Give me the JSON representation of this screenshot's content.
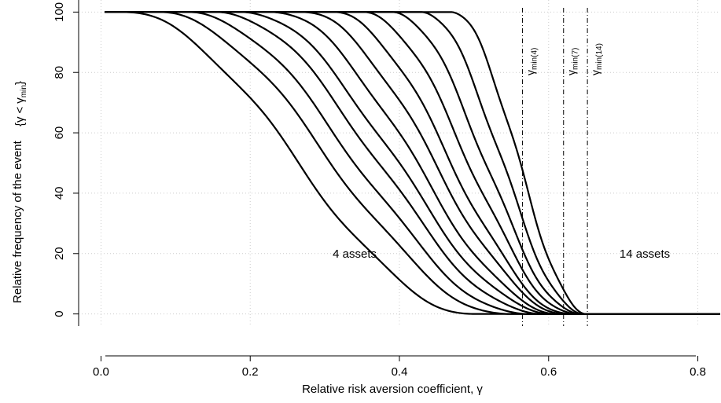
{
  "chart_data": {
    "type": "line",
    "xlabel": "Relative risk aversion coefficient, γ",
    "ylabel_main": "Relative frequency of the event",
    "ylabel_event": {
      "open": "{",
      "gamma": "γ",
      "lt": "<",
      "gamma_min": "γ",
      "min_sub": "min",
      "close": "}"
    },
    "xlim": [
      -0.03,
      0.83
    ],
    "ylim": [
      -4,
      104
    ],
    "x_ticks": [
      0.0,
      0.2,
      0.4,
      0.6,
      0.8
    ],
    "x_tick_labels": [
      "0.0",
      "0.2",
      "0.4",
      "0.6",
      "0.8"
    ],
    "y_ticks": [
      0,
      20,
      40,
      60,
      80,
      100
    ],
    "y_tick_labels": [
      "0",
      "20",
      "40",
      "60",
      "80",
      "100"
    ],
    "grid": true,
    "line_color": "#000000",
    "grid_color": "#cccccc",
    "curve_params": [
      {
        "x_start": 0.03,
        "x_end": 0.5
      },
      {
        "x_start": 0.075,
        "x_end": 0.545
      },
      {
        "x_start": 0.115,
        "x_end": 0.57
      },
      {
        "x_start": 0.155,
        "x_end": 0.59
      },
      {
        "x_start": 0.19,
        "x_end": 0.605
      },
      {
        "x_start": 0.23,
        "x_end": 0.615
      },
      {
        "x_start": 0.27,
        "x_end": 0.625
      },
      {
        "x_start": 0.31,
        "x_end": 0.63
      },
      {
        "x_start": 0.35,
        "x_end": 0.637
      },
      {
        "x_start": 0.39,
        "x_end": 0.642
      },
      {
        "x_start": 0.43,
        "x_end": 0.647
      },
      {
        "x_start": 0.47,
        "x_end": 0.652
      }
    ],
    "vertical_lines": [
      {
        "x": 0.565,
        "label_gamma": "γ",
        "label_sub": "min(4)"
      },
      {
        "x": 0.62,
        "label_gamma": "γ",
        "label_sub": "min(7)"
      },
      {
        "x": 0.652,
        "label_gamma": "γ",
        "label_sub": "min(14)"
      }
    ],
    "annotations": [
      {
        "text": "4 assets",
        "x": 0.34,
        "y": 20
      },
      {
        "text": "14 assets",
        "x": 0.695,
        "y": 20
      }
    ]
  }
}
